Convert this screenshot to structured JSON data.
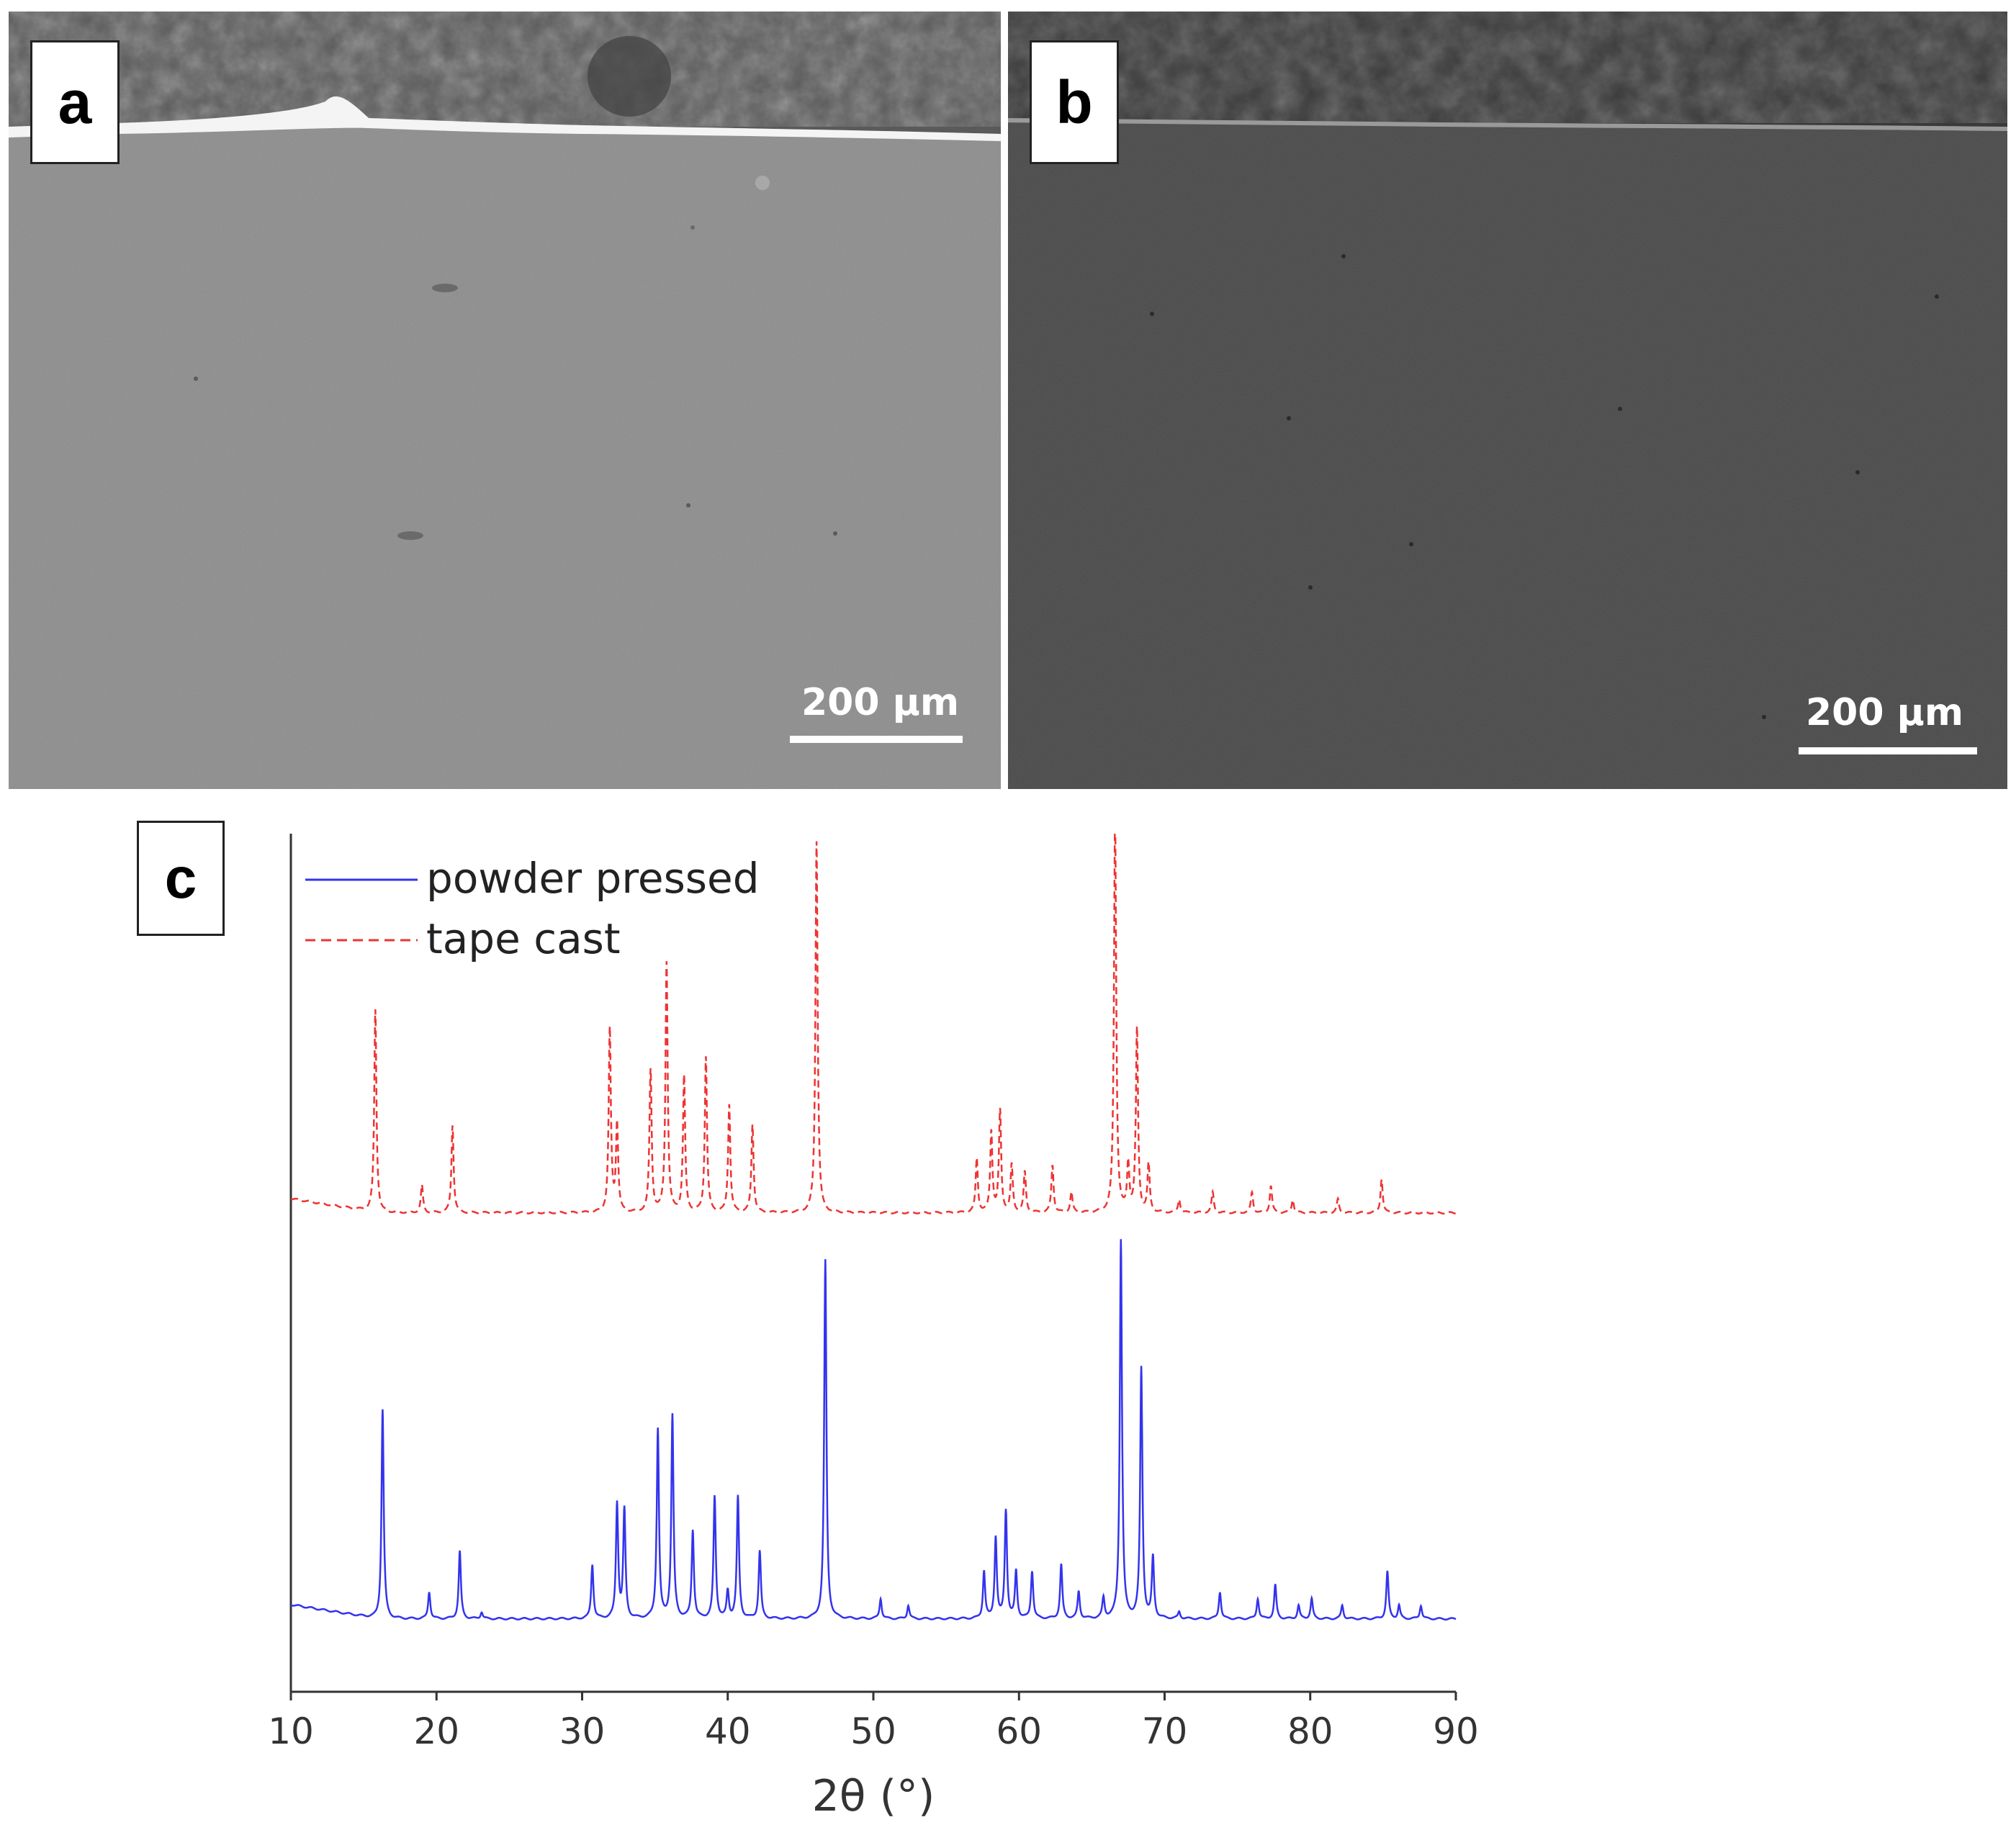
{
  "panels": {
    "a": {
      "label": "a",
      "scale_bar": "200 µm"
    },
    "b": {
      "label": "b",
      "scale_bar": "200 µm"
    },
    "c": {
      "label": "c"
    }
  },
  "chart_data": {
    "type": "line",
    "title": "",
    "xlabel": "2θ (°)",
    "ylabel": "",
    "xlim": [
      10,
      90
    ],
    "xticks": [
      10,
      20,
      30,
      40,
      50,
      60,
      70,
      80,
      90
    ],
    "y_axis_ticks": "none",
    "legend": "top-left",
    "series": [
      {
        "name": "powder pressed",
        "color": "#3333ee",
        "line_style": "solid",
        "baseline_offset": 0,
        "peaks": [
          [
            16.3,
            31
          ],
          [
            19.5,
            4
          ],
          [
            21.6,
            10
          ],
          [
            23.1,
            1
          ],
          [
            30.7,
            8
          ],
          [
            32.4,
            17
          ],
          [
            32.9,
            16
          ],
          [
            35.2,
            28
          ],
          [
            36.2,
            30
          ],
          [
            37.6,
            13
          ],
          [
            39.1,
            18
          ],
          [
            40.0,
            4
          ],
          [
            40.7,
            18
          ],
          [
            42.2,
            10
          ],
          [
            46.7,
            53
          ],
          [
            50.5,
            3
          ],
          [
            52.4,
            2
          ],
          [
            57.6,
            7
          ],
          [
            58.4,
            12
          ],
          [
            59.1,
            16
          ],
          [
            59.8,
            7
          ],
          [
            60.9,
            7
          ],
          [
            62.9,
            8
          ],
          [
            64.1,
            4
          ],
          [
            65.8,
            3
          ],
          [
            67.0,
            56
          ],
          [
            68.4,
            37
          ],
          [
            69.2,
            9
          ],
          [
            71.0,
            1
          ],
          [
            73.8,
            4
          ],
          [
            76.4,
            3
          ],
          [
            77.6,
            5
          ],
          [
            79.2,
            2
          ],
          [
            80.1,
            3
          ],
          [
            82.2,
            2
          ],
          [
            85.3,
            7
          ],
          [
            86.1,
            2
          ],
          [
            87.6,
            2
          ]
        ]
      },
      {
        "name": "tape cast",
        "color": "#ee3333",
        "line_style": "dashed",
        "baseline_offset": 60,
        "peaks": [
          [
            15.8,
            30
          ],
          [
            19.0,
            4
          ],
          [
            21.1,
            13
          ],
          [
            31.9,
            27
          ],
          [
            32.4,
            13
          ],
          [
            34.7,
            21
          ],
          [
            35.8,
            37
          ],
          [
            37.0,
            20
          ],
          [
            38.5,
            23
          ],
          [
            40.1,
            16
          ],
          [
            41.7,
            13
          ],
          [
            46.1,
            55
          ],
          [
            57.1,
            8
          ],
          [
            58.1,
            12
          ],
          [
            58.7,
            15
          ],
          [
            59.5,
            7
          ],
          [
            60.4,
            6
          ],
          [
            62.3,
            7
          ],
          [
            63.6,
            3
          ],
          [
            66.6,
            59
          ],
          [
            67.5,
            7
          ],
          [
            68.1,
            27
          ],
          [
            68.9,
            7
          ],
          [
            71.0,
            2
          ],
          [
            73.3,
            3
          ],
          [
            76.0,
            3
          ],
          [
            77.3,
            4
          ],
          [
            78.8,
            2
          ],
          [
            81.9,
            2
          ],
          [
            84.9,
            5
          ]
        ]
      }
    ]
  }
}
